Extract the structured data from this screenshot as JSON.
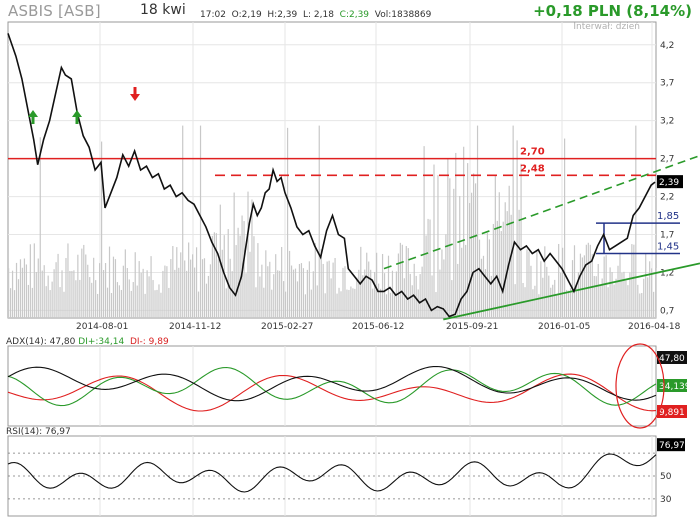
{
  "header": {
    "ticker": "ASBIS [ASB]",
    "timeframe": "18 kwi",
    "time": "17:02",
    "open": "O:2,19",
    "high": "H:2,39",
    "low": "L: 2,18",
    "close": "C:2,39",
    "volume": "Vol:1838869",
    "change": "+0,18 PLN (8,14%)",
    "interval": "Interwał: dzień"
  },
  "chart_data": [
    {
      "type": "line",
      "title": "ASBIS [ASB]",
      "x_ticks": [
        "2014-08-01",
        "2014-11-12",
        "2015-02-27",
        "2015-06-12",
        "2015-09-21",
        "2016-01-05",
        "2016-04-18"
      ],
      "y_ticks": [
        4.2,
        3.7,
        3.2,
        2.7,
        2.2,
        1.7,
        1.2,
        0.7
      ],
      "y_tick_labels": [
        "4,2",
        "3,7",
        "3,2",
        "2,7",
        "2,2",
        "1,7",
        "1,2",
        "0,7"
      ],
      "ylim": [
        0.6,
        4.5
      ],
      "series": [
        {
          "values": [
            [
              0,
              4.35
            ],
            [
              8,
              4.05
            ],
            [
              14,
              3.75
            ],
            [
              20,
              3.35
            ],
            [
              26,
              2.95
            ],
            [
              30,
              2.62
            ],
            [
              36,
              2.95
            ],
            [
              42,
              3.2
            ],
            [
              48,
              3.55
            ],
            [
              54,
              3.9
            ],
            [
              58,
              3.8
            ],
            [
              64,
              3.75
            ],
            [
              70,
              3.3
            ],
            [
              76,
              3.0
            ],
            [
              82,
              2.85
            ],
            [
              88,
              2.55
            ],
            [
              94,
              2.65
            ],
            [
              98,
              2.05
            ],
            [
              104,
              2.25
            ],
            [
              110,
              2.45
            ],
            [
              116,
              2.75
            ],
            [
              122,
              2.6
            ],
            [
              128,
              2.8
            ],
            [
              134,
              2.55
            ],
            [
              140,
              2.6
            ],
            [
              146,
              2.45
            ],
            [
              152,
              2.5
            ],
            [
              158,
              2.3
            ],
            [
              164,
              2.35
            ],
            [
              170,
              2.2
            ],
            [
              176,
              2.25
            ],
            [
              182,
              2.15
            ],
            [
              188,
              2.1
            ],
            [
              194,
              1.95
            ],
            [
              200,
              1.8
            ],
            [
              206,
              1.6
            ],
            [
              212,
              1.45
            ],
            [
              218,
              1.2
            ],
            [
              224,
              1.0
            ],
            [
              230,
              0.9
            ],
            [
              236,
              1.15
            ],
            [
              240,
              1.5
            ],
            [
              244,
              1.85
            ],
            [
              248,
              2.1
            ],
            [
              252,
              1.95
            ],
            [
              256,
              2.05
            ],
            [
              260,
              2.25
            ],
            [
              264,
              2.3
            ],
            [
              268,
              2.55
            ],
            [
              272,
              2.4
            ],
            [
              276,
              2.45
            ],
            [
              280,
              2.25
            ],
            [
              286,
              2.05
            ],
            [
              292,
              1.8
            ],
            [
              298,
              1.7
            ],
            [
              304,
              1.75
            ],
            [
              310,
              1.55
            ],
            [
              316,
              1.4
            ],
            [
              322,
              1.75
            ],
            [
              328,
              1.95
            ],
            [
              334,
              1.7
            ],
            [
              340,
              1.65
            ],
            [
              344,
              1.25
            ],
            [
              350,
              1.15
            ],
            [
              356,
              1.05
            ],
            [
              362,
              1.15
            ],
            [
              368,
              1.1
            ],
            [
              374,
              0.95
            ],
            [
              380,
              0.95
            ],
            [
              386,
              1.0
            ],
            [
              392,
              0.9
            ],
            [
              398,
              0.95
            ],
            [
              404,
              0.85
            ],
            [
              410,
              0.9
            ],
            [
              416,
              0.8
            ],
            [
              422,
              0.85
            ],
            [
              428,
              0.7
            ],
            [
              434,
              0.75
            ],
            [
              440,
              0.72
            ],
            [
              446,
              0.62
            ],
            [
              452,
              0.65
            ],
            [
              458,
              0.85
            ],
            [
              464,
              0.95
            ],
            [
              470,
              1.2
            ],
            [
              476,
              1.25
            ],
            [
              482,
              1.15
            ],
            [
              488,
              1.05
            ],
            [
              494,
              1.15
            ],
            [
              500,
              0.95
            ],
            [
              506,
              1.3
            ],
            [
              512,
              1.6
            ],
            [
              518,
              1.5
            ],
            [
              524,
              1.55
            ],
            [
              530,
              1.45
            ],
            [
              536,
              1.5
            ],
            [
              542,
              1.35
            ],
            [
              548,
              1.45
            ],
            [
              554,
              1.35
            ],
            [
              560,
              1.25
            ],
            [
              566,
              1.1
            ],
            [
              572,
              0.95
            ],
            [
              578,
              1.15
            ],
            [
              584,
              1.3
            ],
            [
              590,
              1.35
            ],
            [
              596,
              1.55
            ],
            [
              602,
              1.7
            ],
            [
              608,
              1.5
            ],
            [
              614,
              1.55
            ],
            [
              620,
              1.6
            ],
            [
              626,
              1.65
            ],
            [
              632,
              1.95
            ],
            [
              638,
              2.05
            ],
            [
              644,
              2.2
            ],
            [
              650,
              2.35
            ],
            [
              654,
              2.39
            ]
          ]
        }
      ],
      "annotations": [
        {
          "type": "hline",
          "value": 2.7,
          "label": "2,70",
          "color": "#e02020",
          "style": "solid"
        },
        {
          "type": "hline",
          "value": 2.48,
          "label": "2,48",
          "color": "#e02020",
          "style": "dashed"
        },
        {
          "type": "level",
          "value": 1.85,
          "label": "1,85",
          "color": "#223388"
        },
        {
          "type": "level",
          "value": 1.45,
          "label": "1,45",
          "color": "#223388"
        },
        {
          "type": "last_price",
          "label": "2,39"
        }
      ],
      "volume_visible": true,
      "grid": true
    },
    {
      "type": "line",
      "title": "ADX(14): 47,80",
      "legend": [
        "DI+:34,14",
        "DI-: 9,89"
      ],
      "series": [
        {
          "name": "ADX",
          "color": "#111111",
          "last_label": "47,80"
        },
        {
          "name": "DI+",
          "color": "#2a9a2a",
          "last_label": "34,139"
        },
        {
          "name": "DI-",
          "color": "#e02020",
          "last_label": "9,891"
        }
      ]
    },
    {
      "type": "line",
      "title": "RSI(14): 76,97",
      "y_ticks": [
        70,
        50,
        30
      ],
      "y_tick_labels": [
        "",
        "50",
        "30"
      ],
      "series": [
        {
          "name": "RSI",
          "color": "#111111",
          "last_label": "76,97"
        }
      ]
    }
  ],
  "colors": {
    "up": "#2a9a2a",
    "down": "#e02020",
    "price": "#111111",
    "volume": "#c8c8c8",
    "grid": "#e6e6e6",
    "level": "#223388"
  }
}
